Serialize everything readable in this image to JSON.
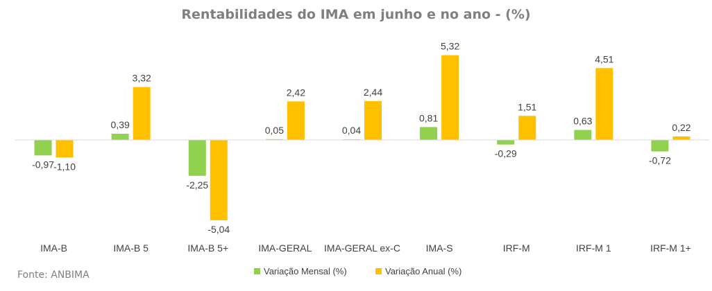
{
  "source": "Fonte: ANBIMA",
  "chart_data": {
    "type": "bar",
    "title": "Rentabilidades do IMA em junho e no ano - (%)",
    "xlabel": "",
    "ylabel": "",
    "categories": [
      "IMA-B",
      "IMA-B 5",
      "IMA-B 5+",
      "IMA-GERAL",
      "IMA-GERAL ex-C",
      "IMA-S",
      "IRF-M",
      "IRF-M 1",
      "IRF-M 1+"
    ],
    "series": [
      {
        "name": "Variação Mensal (%)",
        "color": "#92d050",
        "values": [
          -0.97,
          0.39,
          -2.25,
          0.05,
          0.04,
          0.81,
          -0.29,
          0.63,
          -0.72
        ],
        "labels": [
          "-0,97",
          "0,39",
          "-2,25",
          "0,05",
          "0,04",
          "0,81",
          "-0,29",
          "0,63",
          "-0,72"
        ]
      },
      {
        "name": "Variação Anual (%)",
        "color": "#ffc000",
        "values": [
          -1.1,
          3.32,
          -5.04,
          2.42,
          2.44,
          5.32,
          1.51,
          4.51,
          0.22
        ],
        "labels": [
          "-1,10",
          "3,32",
          "-5,04",
          "2,42",
          "2,44",
          "5,32",
          "1,51",
          "4,51",
          "0,22"
        ]
      }
    ],
    "grid": false,
    "legend": "bottom"
  }
}
